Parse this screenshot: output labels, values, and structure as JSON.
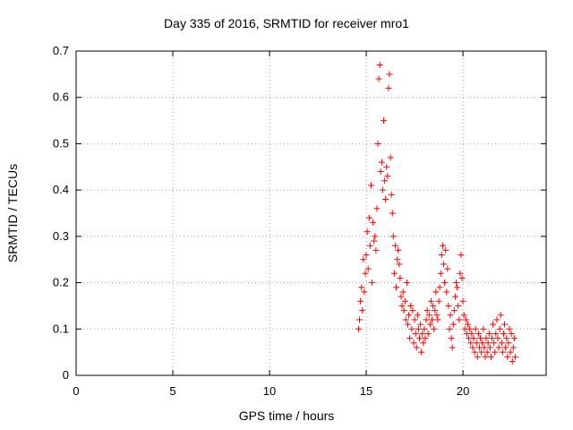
{
  "chart_data": {
    "type": "scatter",
    "title": "Day 335 of 2016, SRMTID for receiver mro1",
    "xlabel": "GPS time / hours",
    "ylabel": "SRMTID / TECUs",
    "xlim": [
      0,
      24.3
    ],
    "ylim": [
      0,
      0.7
    ],
    "x_ticks": [
      0,
      5,
      10,
      15,
      20
    ],
    "y_ticks": [
      0,
      0.1,
      0.2,
      0.3,
      0.4,
      0.5,
      0.6,
      0.7
    ],
    "grid": true,
    "marker": "+",
    "color": "#ff0000",
    "series": [
      {
        "name": "SRMTID",
        "points": [
          [
            14.6,
            0.1
          ],
          [
            14.65,
            0.12
          ],
          [
            14.7,
            0.16
          ],
          [
            14.75,
            0.19
          ],
          [
            14.8,
            0.14
          ],
          [
            14.85,
            0.25
          ],
          [
            14.9,
            0.18
          ],
          [
            14.95,
            0.22
          ],
          [
            15.0,
            0.26
          ],
          [
            15.05,
            0.31
          ],
          [
            15.1,
            0.23
          ],
          [
            15.15,
            0.34
          ],
          [
            15.2,
            0.28
          ],
          [
            15.25,
            0.41
          ],
          [
            15.3,
            0.2
          ],
          [
            15.35,
            0.33
          ],
          [
            15.4,
            0.29
          ],
          [
            15.45,
            0.3
          ],
          [
            15.5,
            0.27
          ],
          [
            15.55,
            0.36
          ],
          [
            15.6,
            0.5
          ],
          [
            15.65,
            0.64
          ],
          [
            15.7,
            0.67
          ],
          [
            15.75,
            0.44
          ],
          [
            15.8,
            0.46
          ],
          [
            15.85,
            0.4
          ],
          [
            15.9,
            0.55
          ],
          [
            15.95,
            0.42
          ],
          [
            16.0,
            0.38
          ],
          [
            16.05,
            0.45
          ],
          [
            16.1,
            0.43
          ],
          [
            16.15,
            0.62
          ],
          [
            16.2,
            0.65
          ],
          [
            16.25,
            0.47
          ],
          [
            16.3,
            0.39
          ],
          [
            16.35,
            0.35
          ],
          [
            16.4,
            0.3
          ],
          [
            16.45,
            0.22
          ],
          [
            16.5,
            0.28
          ],
          [
            16.55,
            0.19
          ],
          [
            16.6,
            0.25
          ],
          [
            16.65,
            0.27
          ],
          [
            16.7,
            0.24
          ],
          [
            16.75,
            0.21
          ],
          [
            16.8,
            0.17
          ],
          [
            16.85,
            0.15
          ],
          [
            16.9,
            0.18
          ],
          [
            16.95,
            0.14
          ],
          [
            17.0,
            0.16
          ],
          [
            17.05,
            0.12
          ],
          [
            17.1,
            0.2
          ],
          [
            17.15,
            0.11
          ],
          [
            17.2,
            0.13
          ],
          [
            17.25,
            0.08
          ],
          [
            17.3,
            0.15
          ],
          [
            17.35,
            0.1
          ],
          [
            17.4,
            0.14
          ],
          [
            17.45,
            0.07
          ],
          [
            17.5,
            0.12
          ],
          [
            17.55,
            0.09
          ],
          [
            17.6,
            0.06
          ],
          [
            17.65,
            0.13
          ],
          [
            17.7,
            0.1
          ],
          [
            17.75,
            0.08
          ],
          [
            17.8,
            0.11
          ],
          [
            17.85,
            0.05
          ],
          [
            17.9,
            0.09
          ],
          [
            17.95,
            0.07
          ],
          [
            18.0,
            0.1
          ],
          [
            18.05,
            0.08
          ],
          [
            18.1,
            0.12
          ],
          [
            18.15,
            0.14
          ],
          [
            18.2,
            0.09
          ],
          [
            18.25,
            0.13
          ],
          [
            18.3,
            0.11
          ],
          [
            18.35,
            0.16
          ],
          [
            18.4,
            0.12
          ],
          [
            18.45,
            0.15
          ],
          [
            18.5,
            0.1
          ],
          [
            18.55,
            0.14
          ],
          [
            18.6,
            0.18
          ],
          [
            18.65,
            0.13
          ],
          [
            18.7,
            0.12
          ],
          [
            18.75,
            0.16
          ],
          [
            18.8,
            0.19
          ],
          [
            18.85,
            0.22
          ],
          [
            18.9,
            0.26
          ],
          [
            18.95,
            0.28
          ],
          [
            19.0,
            0.24
          ],
          [
            19.05,
            0.2
          ],
          [
            19.1,
            0.27
          ],
          [
            19.15,
            0.18
          ],
          [
            19.2,
            0.23
          ],
          [
            19.25,
            0.15
          ],
          [
            19.3,
            0.1
          ],
          [
            19.35,
            0.13
          ],
          [
            19.4,
            0.08
          ],
          [
            19.45,
            0.06
          ],
          [
            19.5,
            0.11
          ],
          [
            19.55,
            0.14
          ],
          [
            19.6,
            0.17
          ],
          [
            19.65,
            0.2
          ],
          [
            19.7,
            0.19
          ],
          [
            19.75,
            0.15
          ],
          [
            19.8,
            0.12
          ],
          [
            19.85,
            0.22
          ],
          [
            19.9,
            0.26
          ],
          [
            19.95,
            0.21
          ],
          [
            20.0,
            0.16
          ],
          [
            20.05,
            0.13
          ],
          [
            20.1,
            0.1
          ],
          [
            20.15,
            0.12
          ],
          [
            20.2,
            0.09
          ],
          [
            20.25,
            0.11
          ],
          [
            20.3,
            0.08
          ],
          [
            20.35,
            0.1
          ],
          [
            20.4,
            0.07
          ],
          [
            20.45,
            0.09
          ],
          [
            20.5,
            0.06
          ],
          [
            20.55,
            0.08
          ],
          [
            20.6,
            0.05
          ],
          [
            20.65,
            0.1
          ],
          [
            20.7,
            0.07
          ],
          [
            20.75,
            0.04
          ],
          [
            20.8,
            0.09
          ],
          [
            20.85,
            0.06
          ],
          [
            20.9,
            0.08
          ],
          [
            20.95,
            0.05
          ],
          [
            21.0,
            0.07
          ],
          [
            21.05,
            0.1
          ],
          [
            21.1,
            0.06
          ],
          [
            21.15,
            0.04
          ],
          [
            21.2,
            0.08
          ],
          [
            21.25,
            0.05
          ],
          [
            21.3,
            0.07
          ],
          [
            21.35,
            0.09
          ],
          [
            21.4,
            0.06
          ],
          [
            21.45,
            0.04
          ],
          [
            21.5,
            0.08
          ],
          [
            21.55,
            0.11
          ],
          [
            21.6,
            0.07
          ],
          [
            21.65,
            0.05
          ],
          [
            21.7,
            0.09
          ],
          [
            21.75,
            0.12
          ],
          [
            21.8,
            0.08
          ],
          [
            21.85,
            0.06
          ],
          [
            21.9,
            0.1
          ],
          [
            21.95,
            0.13
          ],
          [
            22.0,
            0.07
          ],
          [
            22.05,
            0.05
          ],
          [
            22.1,
            0.09
          ],
          [
            22.15,
            0.11
          ],
          [
            22.2,
            0.06
          ],
          [
            22.25,
            0.08
          ],
          [
            22.3,
            0.04
          ],
          [
            22.35,
            0.07
          ],
          [
            22.4,
            0.1
          ],
          [
            22.45,
            0.05
          ],
          [
            22.5,
            0.09
          ],
          [
            22.55,
            0.03
          ],
          [
            22.6,
            0.06
          ],
          [
            22.65,
            0.08
          ],
          [
            22.7,
            0.04
          ]
        ]
      }
    ]
  }
}
